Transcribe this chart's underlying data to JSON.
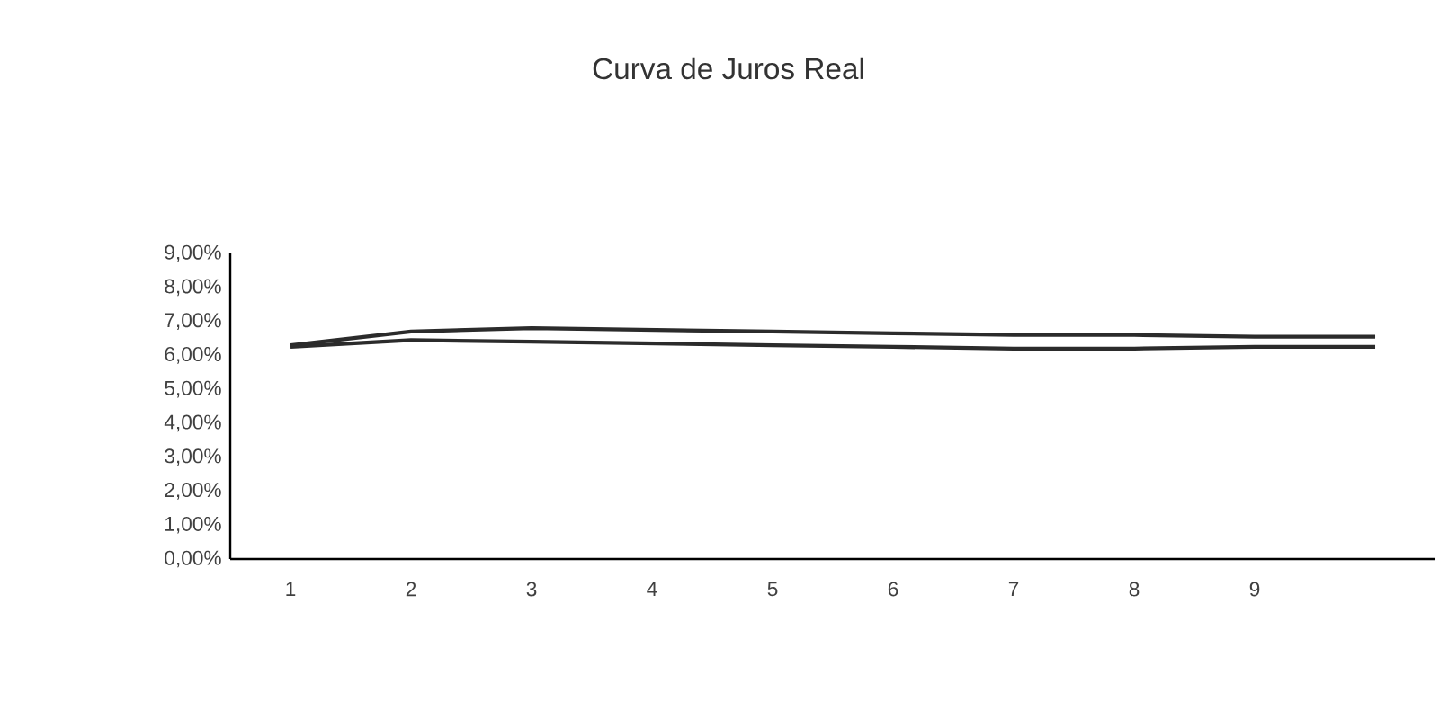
{
  "chart_data": {
    "type": "line",
    "title": "Curva de Juros Real",
    "categories": [
      "1",
      "2",
      "3",
      "4",
      "5",
      "6",
      "7",
      "8",
      "9",
      null
    ],
    "series": [
      {
        "color": "#2b2b2b",
        "values": [
          6.3,
          6.7,
          6.8,
          6.75,
          6.7,
          6.65,
          6.6,
          6.6,
          6.55,
          6.55
        ]
      },
      {
        "color": "#2b2b2b",
        "values": [
          6.25,
          6.45,
          6.4,
          6.35,
          6.3,
          6.25,
          6.2,
          6.2,
          6.25,
          6.25
        ]
      }
    ],
    "ylim": [
      0,
      9
    ],
    "yticks": [
      {
        "value": 0,
        "label": "0,00%"
      },
      {
        "value": 1,
        "label": "1,00%"
      },
      {
        "value": 2,
        "label": "2,00%"
      },
      {
        "value": 3,
        "label": "3,00%"
      },
      {
        "value": 4,
        "label": "4,00%"
      },
      {
        "value": 5,
        "label": "5,00%"
      },
      {
        "value": 6,
        "label": "6,00%"
      },
      {
        "value": 7,
        "label": "7,00%"
      },
      {
        "value": 8,
        "label": "8,00%"
      },
      {
        "value": 9,
        "label": "9,00%"
      }
    ],
    "marker": "none",
    "line_style": "solid"
  }
}
